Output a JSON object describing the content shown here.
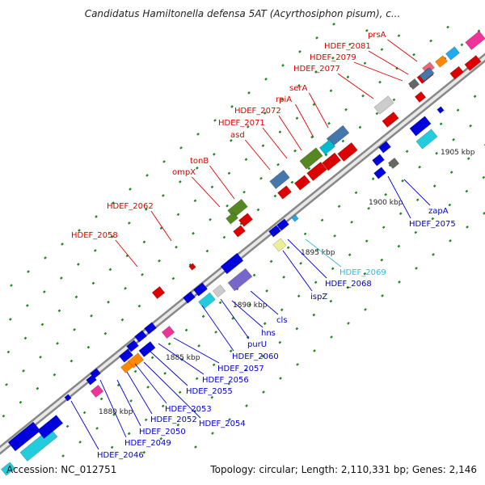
{
  "header": {
    "title": "Candidatus Hamiltonella defensa 5AT (Acyrthosiphon pisum), c..."
  },
  "footer": {
    "accession": "Accession: NC_012751",
    "summary": "Topology: circular; Length: 2,110,331 bp; Genes: 2,146"
  },
  "colors": {
    "upper_label": "#dd0000",
    "lower_label": "#0000cc",
    "highlight_label": "#33bbdd",
    "backbone_outer": "#888888",
    "backbone_inner": "#e8e8e8",
    "tick": "#228822"
  },
  "scale_labels": [
    "1880 kbp",
    "1885 kbp",
    "1890 kbp",
    "1895 kbp",
    "1900 kbp",
    "1905 kbp"
  ],
  "upper_gene_labels": [
    "prsA",
    "HDEF_2081",
    "HDEF_2079",
    "HDEF_2077",
    "serA",
    "rpiA",
    "HDEF_2072",
    "HDEF_2071",
    "asd",
    "tonB",
    "ompX",
    "HDEF_2062",
    "HDEF_2058"
  ],
  "lower_gene_labels": [
    "zapA",
    "HDEF_2075",
    "HDEF_2069",
    "HDEF_2068",
    "ispZ",
    "cls",
    "hns",
    "purU",
    "HDEF_2060",
    "HDEF_2057",
    "HDEF_2056",
    "HDEF_2055",
    "HDEF_2054",
    "HDEF_2053",
    "HDEF_2052",
    "HDEF_2050",
    "HDEF_2049",
    "HDEF_2046"
  ]
}
